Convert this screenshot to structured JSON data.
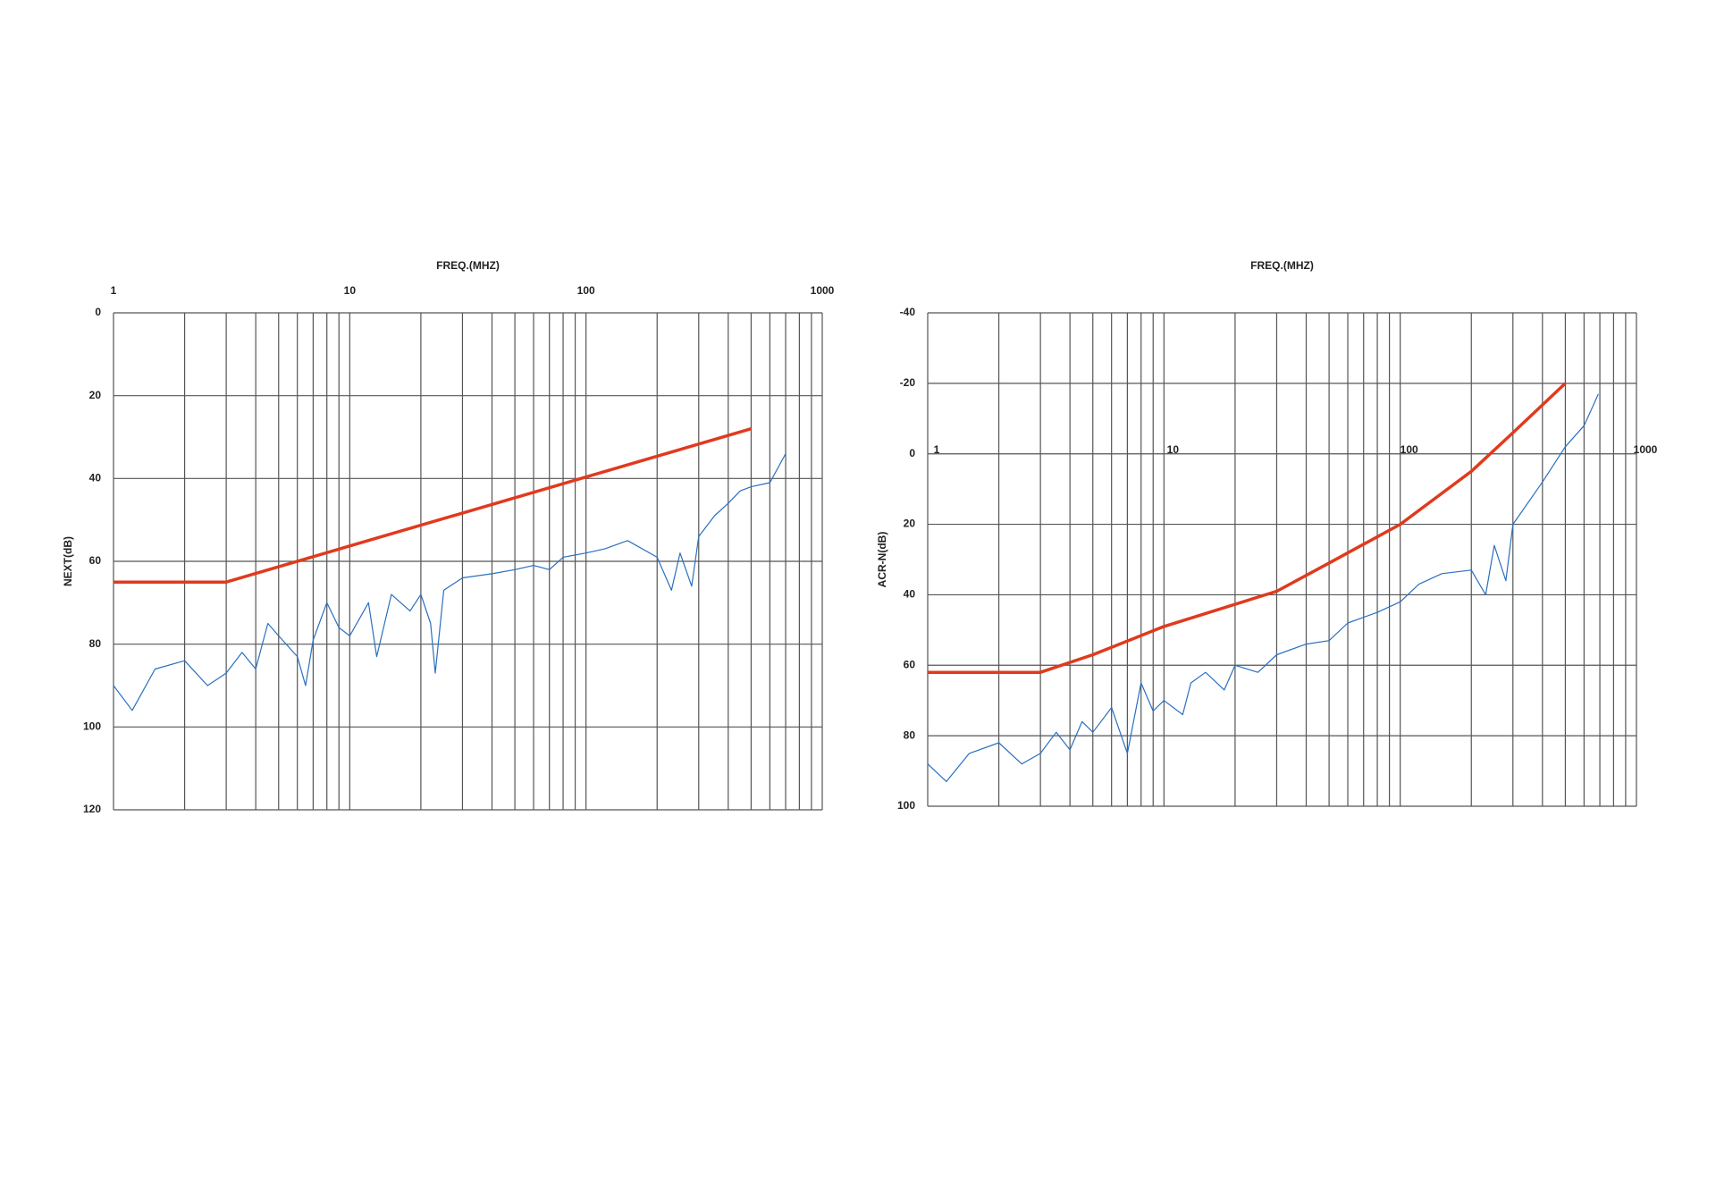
{
  "chart_data": [
    {
      "type": "line",
      "title": "FREQ.(MHZ)",
      "y_label": "NEXT(dB)",
      "xscale": "log",
      "xaxis_position": "top",
      "grid": true,
      "xlim": [
        1,
        1000
      ],
      "xticks": [
        1,
        10,
        100,
        1000
      ],
      "x_minor_ticks": [
        2,
        3,
        4,
        5,
        6,
        7,
        8,
        9,
        20,
        30,
        40,
        50,
        60,
        70,
        80,
        90,
        200,
        300,
        400,
        500,
        600,
        700,
        800,
        900
      ],
      "ylim": [
        120,
        0
      ],
      "yticks": [
        0,
        20,
        40,
        60,
        80,
        100,
        120
      ],
      "series": [
        {
          "color": "#e03a1e",
          "x": [
            1,
            3,
            500
          ],
          "values": [
            65,
            65,
            28
          ]
        },
        {
          "color": "#2a6fc0",
          "x": [
            1,
            1.2,
            1.5,
            2,
            2.5,
            3,
            3.5,
            4,
            4.5,
            5,
            6,
            6.5,
            7,
            8,
            9,
            10,
            12,
            13,
            15,
            18,
            20,
            22,
            23,
            25,
            30,
            40,
            50,
            60,
            70,
            80,
            100,
            120,
            150,
            200,
            230,
            250,
            280,
            300,
            350,
            400,
            450,
            500,
            600,
            700
          ],
          "values": [
            90,
            96,
            86,
            84,
            90,
            87,
            82,
            86,
            75,
            78,
            83,
            90,
            79,
            70,
            76,
            78,
            70,
            83,
            68,
            72,
            68,
            75,
            87,
            67,
            64,
            63,
            62,
            61,
            62,
            59,
            58,
            57,
            55,
            59,
            67,
            58,
            66,
            54,
            49,
            46,
            43,
            42,
            41,
            34
          ]
        }
      ]
    },
    {
      "type": "line",
      "title": "FREQ.(MHZ)",
      "y_label": "ACR-N(dB)",
      "xscale": "log",
      "xaxis_position": "zero",
      "grid": true,
      "xlim": [
        1,
        1000
      ],
      "xticks": [
        1,
        10,
        100,
        1000
      ],
      "x_minor_ticks": [
        2,
        3,
        4,
        5,
        6,
        7,
        8,
        9,
        20,
        30,
        40,
        50,
        60,
        70,
        80,
        90,
        200,
        300,
        400,
        500,
        600,
        700,
        800,
        900
      ],
      "ylim": [
        100,
        -40
      ],
      "yticks": [
        -40,
        -20,
        0,
        20,
        40,
        60,
        80,
        100
      ],
      "series": [
        {
          "color": "#e03a1e",
          "x": [
            1,
            3,
            5,
            10,
            30,
            50,
            100,
            200,
            300,
            500
          ],
          "values": [
            62,
            62,
            57,
            49,
            39,
            31,
            20,
            5,
            -6,
            -20
          ]
        },
        {
          "color": "#2a6fc0",
          "x": [
            1,
            1.2,
            1.5,
            2,
            2.5,
            3,
            3.5,
            4,
            4.5,
            5,
            6,
            7,
            8,
            9,
            10,
            12,
            13,
            15,
            18,
            20,
            25,
            30,
            40,
            50,
            60,
            80,
            100,
            120,
            150,
            200,
            230,
            250,
            280,
            300,
            400,
            500,
            600,
            690
          ],
          "values": [
            88,
            93,
            85,
            82,
            88,
            85,
            79,
            84,
            76,
            79,
            72,
            85,
            65,
            73,
            70,
            74,
            65,
            62,
            67,
            60,
            62,
            57,
            54,
            53,
            48,
            45,
            42,
            37,
            34,
            33,
            40,
            26,
            36,
            20,
            8,
            -2,
            -8,
            -17
          ]
        }
      ]
    }
  ]
}
